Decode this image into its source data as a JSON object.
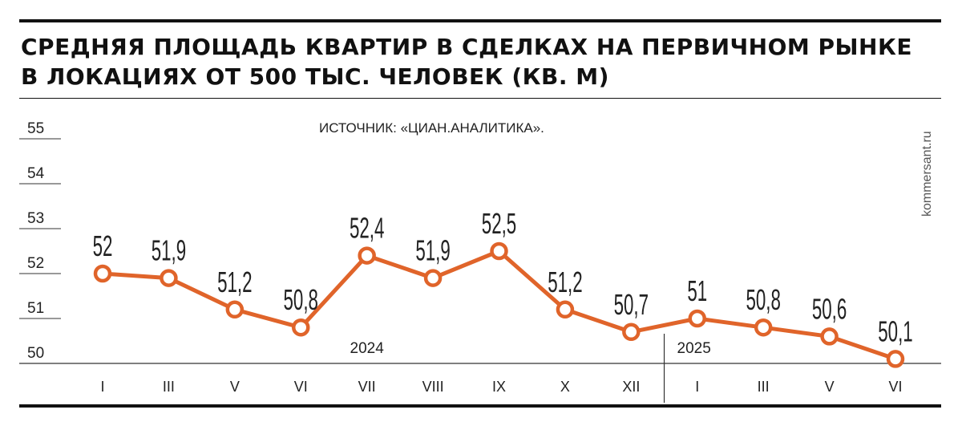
{
  "title_line1": "СРЕДНЯЯ ПЛОЩАДЬ КВАРТИР В СДЕЛКАХ НА ПЕРВИЧНОМ РЫНКЕ",
  "title_line2": "В ЛОКАЦИЯХ ОТ 500 ТЫС. ЧЕЛОВЕК (КВ. М)",
  "source": "ИСТОЧНИК: «ЦИАН.АНАЛИТИКА».",
  "credit": "kommersant.ru",
  "colors": {
    "line": "#e0642a",
    "text": "#222222"
  },
  "chart_data": {
    "type": "line",
    "title": "СРЕДНЯЯ ПЛОЩАДЬ КВАРТИР В СДЕЛКАХ НА ПЕРВИЧНОМ РЫНКЕ В ЛОКАЦИЯХ ОТ 500 ТЫС. ЧЕЛОВЕК (КВ. М)",
    "categories": [
      "I",
      "III",
      "V",
      "VI",
      "VII",
      "VIII",
      "IX",
      "X",
      "XII",
      "I",
      "III",
      "V",
      "VI"
    ],
    "labels": [
      "52",
      "51,9",
      "51,2",
      "50,8",
      "52,4",
      "51,9",
      "52,5",
      "51,2",
      "50,7",
      "51",
      "50,8",
      "50,6",
      "50,1"
    ],
    "values": [
      52,
      51.9,
      51.2,
      50.8,
      52.4,
      51.9,
      52.5,
      51.2,
      50.7,
      51,
      50.8,
      50.6,
      50.1
    ],
    "ylim": [
      50,
      55
    ],
    "yticks": [
      "50",
      "51",
      "52",
      "53",
      "54",
      "55"
    ],
    "groups": [
      {
        "label": "2024",
        "start": 0,
        "end": 8
      },
      {
        "label": "2025",
        "start": 9,
        "end": 12
      }
    ],
    "grid": false
  }
}
